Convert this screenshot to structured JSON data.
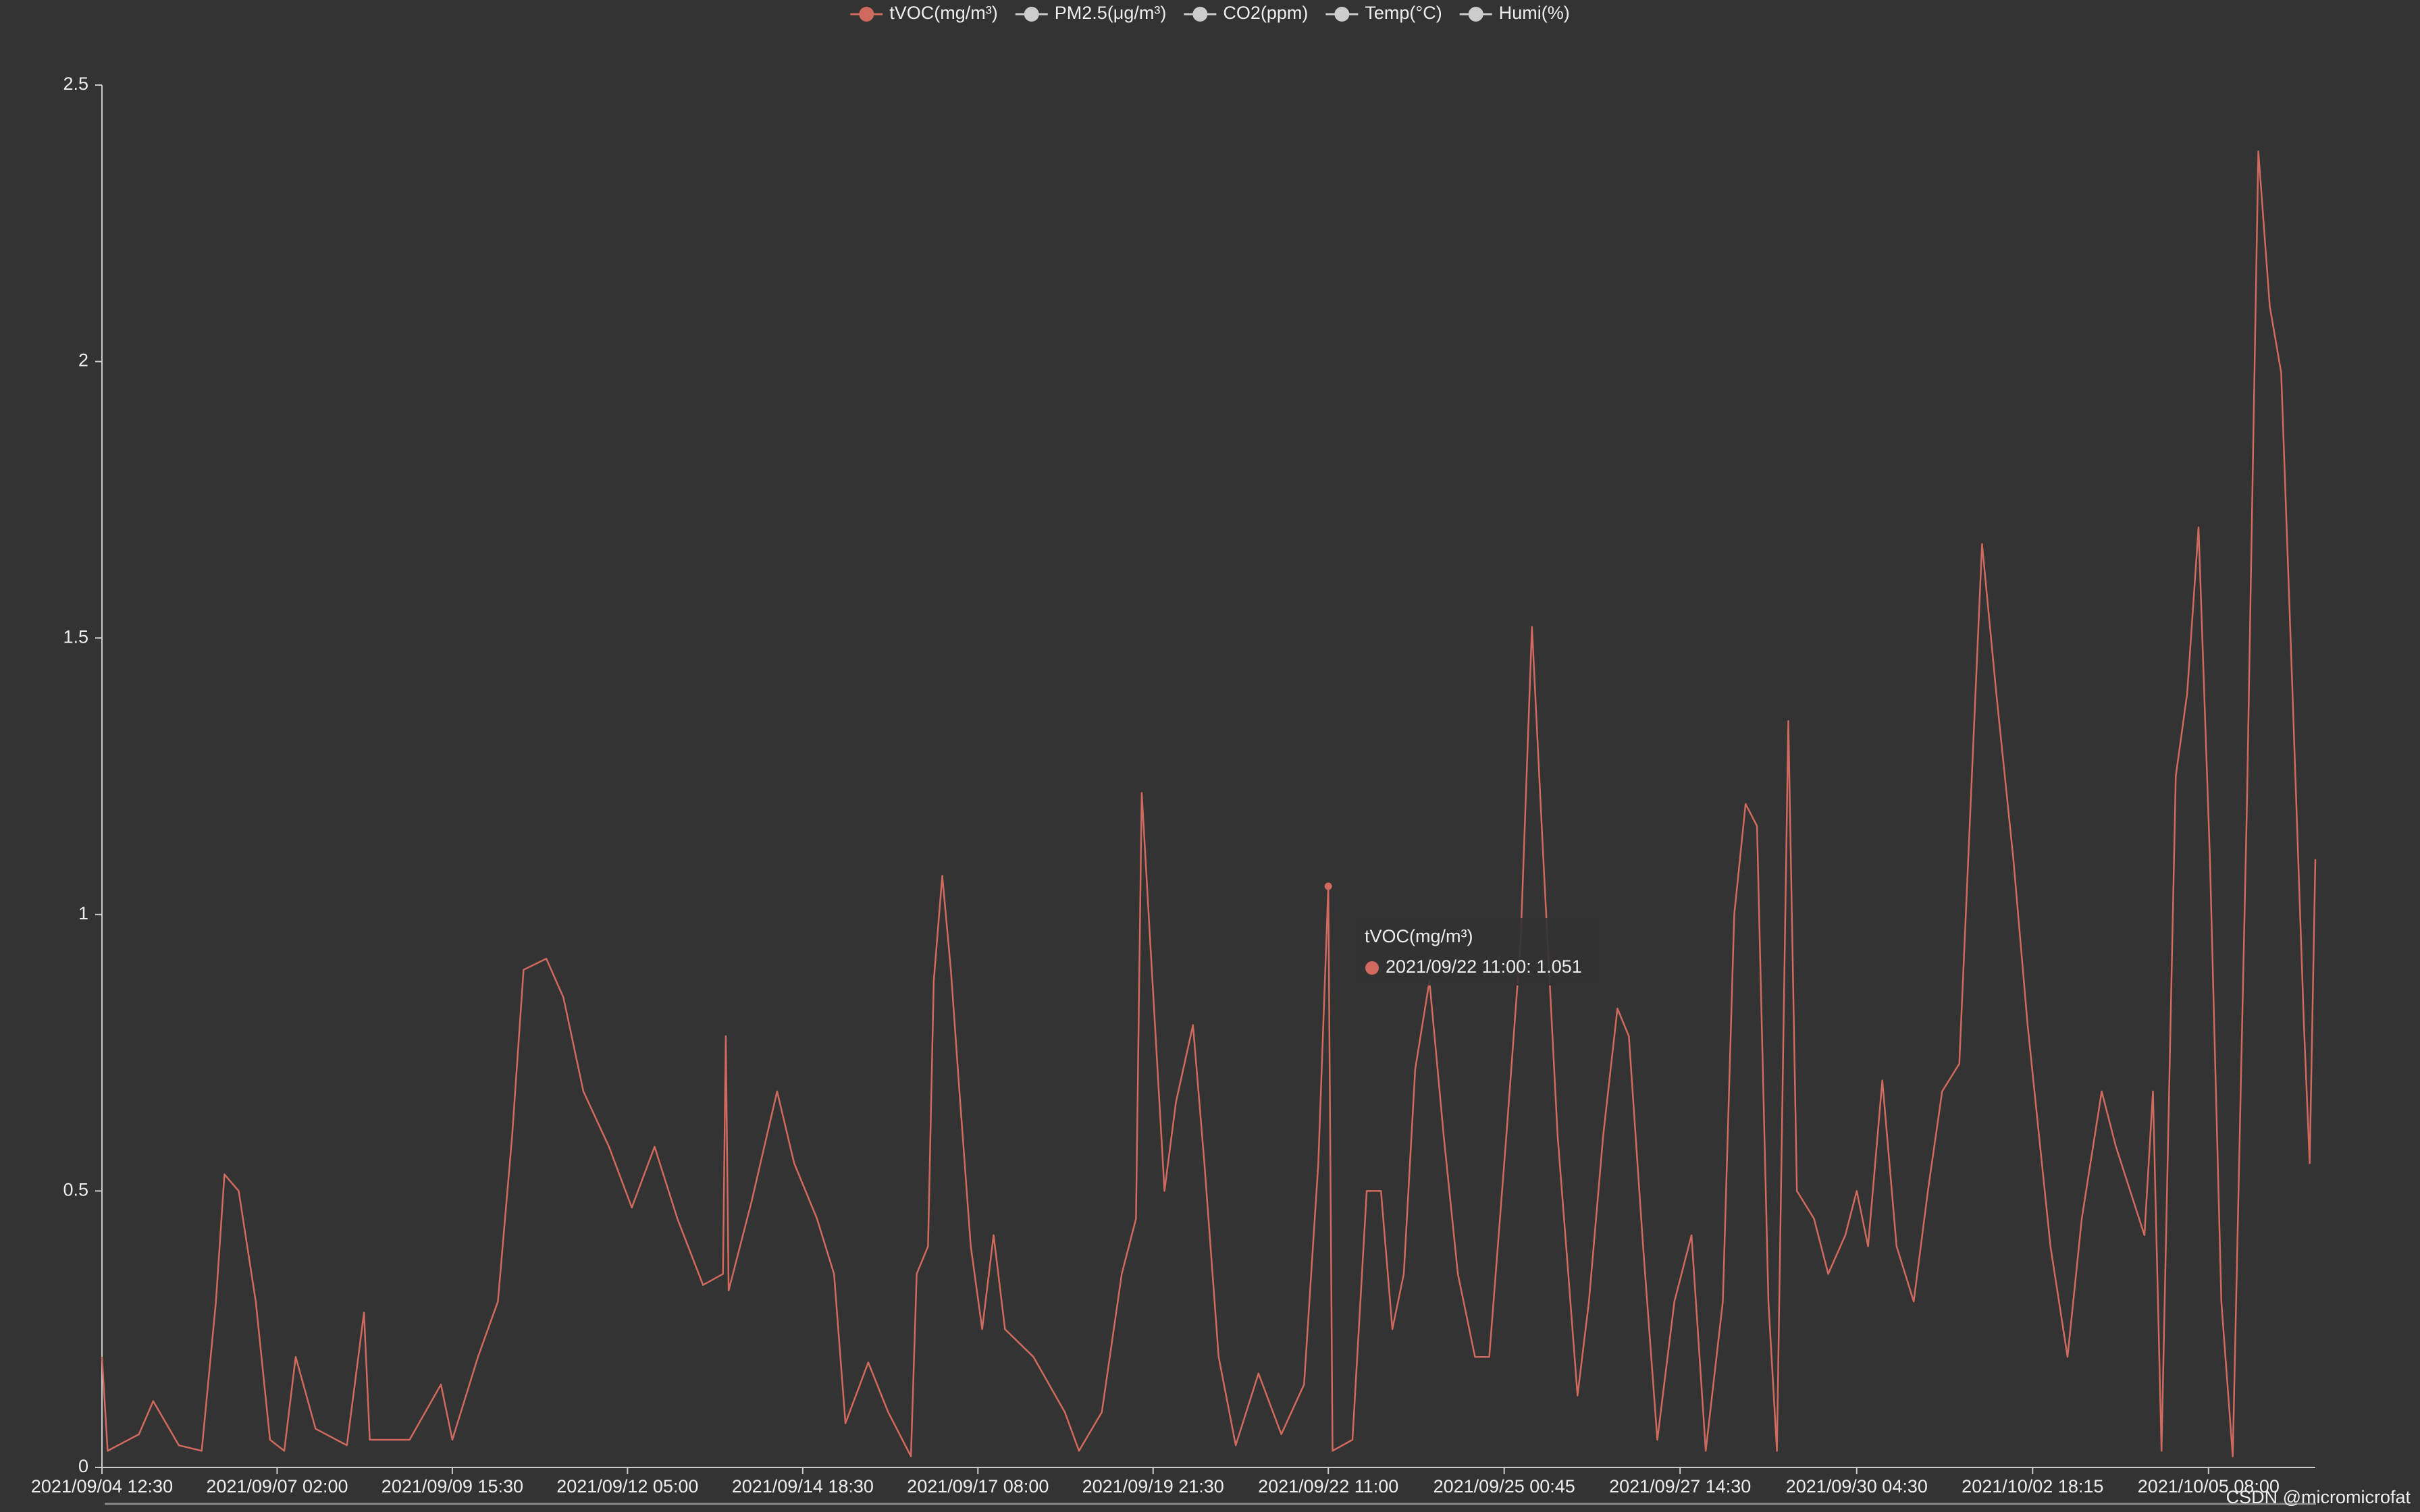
{
  "chart_data": {
    "type": "line",
    "series": [
      {
        "name": "tVOC(mg/m³)",
        "color": "#d0695e",
        "values": [
          0.2,
          0.03,
          0.06,
          0.12,
          0.04,
          0.03,
          0.3,
          0.53,
          0.5,
          0.3,
          0.05,
          0.03,
          0.2,
          0.07,
          0.04,
          0.28,
          0.05,
          0.05,
          0.15,
          0.05,
          0.2,
          0.3,
          0.6,
          0.9,
          0.92,
          0.85,
          0.68,
          0.58,
          0.47,
          0.58,
          0.45,
          0.33,
          0.35,
          0.78,
          0.32,
          0.48,
          0.68,
          0.55,
          0.45,
          0.35,
          0.08,
          0.19,
          0.1,
          0.02,
          0.35,
          0.4,
          0.88,
          1.07,
          0.9,
          0.68,
          0.4,
          0.25,
          0.42,
          0.25,
          0.2,
          0.1,
          0.03,
          0.1,
          0.35,
          0.45,
          1.22,
          0.95,
          0.5,
          0.66,
          0.8,
          0.55,
          0.2,
          0.04,
          0.17,
          0.06,
          0.15,
          0.55,
          1.051,
          0.03,
          0.05,
          0.5,
          0.5,
          0.25,
          0.35,
          0.72,
          0.88,
          0.6,
          0.35,
          0.2,
          0.2,
          0.6,
          0.95,
          1.52,
          1.1,
          0.6,
          0.4,
          0.13,
          0.3,
          0.6,
          0.83,
          0.78,
          0.4,
          0.05,
          0.3,
          0.42,
          0.03,
          0.3,
          1.0,
          1.2,
          1.16,
          0.3,
          0.03,
          1.35,
          0.5,
          0.45,
          0.35,
          0.42,
          0.5,
          0.4,
          0.7,
          0.4,
          0.3,
          0.5,
          0.68,
          0.73,
          1.2,
          1.67,
          1.4,
          1.1,
          0.8,
          0.4,
          0.2,
          0.45,
          0.68,
          0.58,
          0.5,
          0.42,
          0.68,
          0.03,
          1.25,
          1.4,
          1.7,
          1.1,
          0.3,
          0.02,
          1.2,
          2.38,
          2.1,
          1.98,
          1.4,
          0.8,
          0.55,
          1.1
        ]
      }
    ],
    "x": [
      "2021/09/04 12:30",
      "2021/09/04 14:30",
      "2021/09/05 01:30",
      "2021/09/05 06:30",
      "2021/09/05 15:30",
      "2021/09/05 23:30",
      "2021/09/06 04:30",
      "2021/09/06 07:30",
      "2021/09/06 12:30",
      "2021/09/06 18:30",
      "2021/09/06 23:30",
      "2021/09/07 04:30",
      "2021/09/07 08:30",
      "2021/09/07 15:30",
      "2021/09/08 02:30",
      "2021/09/08 08:30",
      "2021/09/08 10:30",
      "2021/09/09 00:30",
      "2021/09/09 11:30",
      "2021/09/09 15:30",
      "2021/09/10 00:30",
      "2021/09/10 07:30",
      "2021/09/10 12:30",
      "2021/09/10 16:30",
      "2021/09/11 00:30",
      "2021/09/11 06:30",
      "2021/09/11 13:30",
      "2021/09/11 22:30",
      "2021/09/12 06:30",
      "2021/09/12 14:30",
      "2021/09/12 22:30",
      "2021/09/13 07:30",
      "2021/09/13 14:30",
      "2021/09/13 15:30",
      "2021/09/13 16:30",
      "2021/09/14 00:30",
      "2021/09/14 09:30",
      "2021/09/14 15:30",
      "2021/09/14 23:30",
      "2021/09/15 05:30",
      "2021/09/15 09:30",
      "2021/09/15 17:30",
      "2021/09/16 00:30",
      "2021/09/16 08:30",
      "2021/09/16 10:30",
      "2021/09/16 14:30",
      "2021/09/16 16:30",
      "2021/09/16 19:30",
      "2021/09/16 22:30",
      "2021/09/17 01:30",
      "2021/09/17 05:30",
      "2021/09/17 09:30",
      "2021/09/17 13:30",
      "2021/09/17 17:30",
      "2021/09/18 03:30",
      "2021/09/18 14:30",
      "2021/09/18 19:30",
      "2021/09/19 03:30",
      "2021/09/19 10:30",
      "2021/09/19 15:30",
      "2021/09/19 17:30",
      "2021/09/19 20:30",
      "2021/09/20 01:30",
      "2021/09/20 05:30",
      "2021/09/20 11:30",
      "2021/09/20 15:30",
      "2021/09/20 20:30",
      "2021/09/21 02:30",
      "2021/09/21 10:30",
      "2021/09/21 18:30",
      "2021/09/22 02:30",
      "2021/09/22 07:30",
      "2021/09/22 11:00",
      "2021/09/22 12:30",
      "2021/09/22 19:30",
      "2021/09/23 00:30",
      "2021/09/23 05:30",
      "2021/09/23 09:30",
      "2021/09/23 13:30",
      "2021/09/23 17:30",
      "2021/09/23 22:30",
      "2021/09/24 03:30",
      "2021/09/24 08:30",
      "2021/09/24 14:30",
      "2021/09/24 19:30",
      "2021/09/25 01:30",
      "2021/09/25 06:30",
      "2021/09/25 10:30",
      "2021/09/25 14:30",
      "2021/09/25 19:30",
      "2021/09/25 22:30",
      "2021/09/26 02:30",
      "2021/09/26 06:30",
      "2021/09/26 11:30",
      "2021/09/26 16:30",
      "2021/09/26 20:30",
      "2021/09/27 01:30",
      "2021/09/27 06:30",
      "2021/09/27 12:30",
      "2021/09/27 18:30",
      "2021/09/27 23:30",
      "2021/09/28 05:30",
      "2021/09/28 09:30",
      "2021/09/28 13:30",
      "2021/09/28 17:30",
      "2021/09/28 21:30",
      "2021/09/29 00:30",
      "2021/09/29 04:30",
      "2021/09/29 07:30",
      "2021/09/29 13:30",
      "2021/09/29 18:30",
      "2021/09/30 00:30",
      "2021/09/30 04:30",
      "2021/09/30 08:30",
      "2021/09/30 13:30",
      "2021/09/30 18:30",
      "2021/10/01 00:30",
      "2021/10/01 05:30",
      "2021/10/01 10:30",
      "2021/10/01 16:30",
      "2021/10/01 20:30",
      "2021/10/02 00:30",
      "2021/10/02 05:30",
      "2021/10/02 11:30",
      "2021/10/02 16:30",
      "2021/10/03 00:30",
      "2021/10/03 06:30",
      "2021/10/03 11:30",
      "2021/10/03 18:30",
      "2021/10/03 23:30",
      "2021/10/04 04:30",
      "2021/10/04 09:30",
      "2021/10/04 12:30",
      "2021/10/04 15:30",
      "2021/10/04 20:30",
      "2021/10/05 00:30",
      "2021/10/05 04:30",
      "2021/10/05 08:30",
      "2021/10/05 12:30",
      "2021/10/05 16:30",
      "2021/10/05 21:30",
      "2021/10/06 01:30",
      "2021/10/06 05:30",
      "2021/10/06 09:30",
      "2021/10/06 13:30",
      "2021/10/06 17:30",
      "2021/10/06 19:30",
      "2021/10/06 21:30"
    ],
    "xlim": [
      "2021/09/04 12:30",
      "2021/10/06 21:30"
    ],
    "xticks": [
      "2021/09/04 12:30",
      "2021/09/07 02:00",
      "2021/09/09 15:30",
      "2021/09/12 05:00",
      "2021/09/14 18:30",
      "2021/09/17 08:00",
      "2021/09/19 21:30",
      "2021/09/22 11:00",
      "2021/09/25 00:45",
      "2021/09/27 14:30",
      "2021/09/30 04:30",
      "2021/10/02 18:15",
      "2021/10/05 08:00"
    ],
    "ylim": [
      0,
      2.5
    ],
    "yticks": [
      0,
      0.5,
      1,
      1.5,
      2,
      2.5
    ],
    "hidden_series": [
      {
        "name": "PM2.5(μg/m³)"
      },
      {
        "name": "CO2(ppm)"
      },
      {
        "name": "Temp(°C)"
      },
      {
        "name": "Humi(%)"
      }
    ],
    "inactive_color": "#cccccc",
    "tooltip": {
      "title": "tVOC(mg/m³)",
      "text": "2021/09/22 11:00: 1.051",
      "point": 72
    },
    "watermark": "CSDN @micromicrofat"
  }
}
